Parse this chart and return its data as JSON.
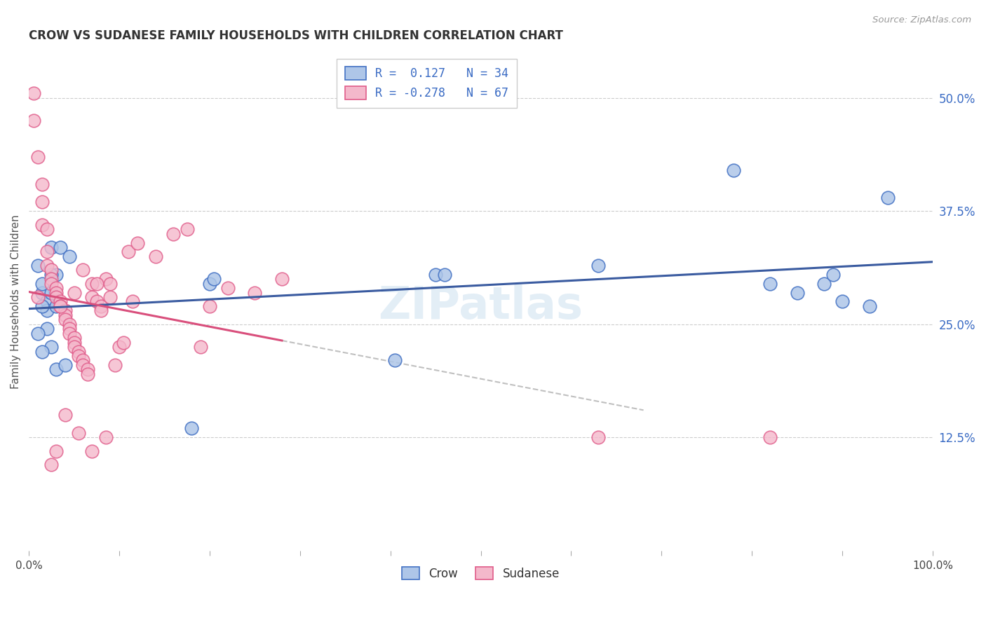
{
  "title": "CROW VS SUDANESE FAMILY HOUSEHOLDS WITH CHILDREN CORRELATION CHART",
  "source": "Source: ZipAtlas.com",
  "ylabel": "Family Households with Children",
  "xlim": [
    0,
    100
  ],
  "ylim": [
    0,
    55
  ],
  "ytick_positions": [
    12.5,
    25.0,
    37.5,
    50.0
  ],
  "ytick_labels": [
    "12.5%",
    "25.0%",
    "37.5%",
    "50.0%"
  ],
  "crow_color": "#aec6e8",
  "crow_edge_color": "#4472c4",
  "sudanese_color": "#f4b8cb",
  "sudanese_edge_color": "#e05c8a",
  "crow_line_color": "#3a5ba0",
  "sudanese_line_color": "#d94f7c",
  "background_color": "#ffffff",
  "grid_color": "#cccccc",
  "legend_text_color": "#3a6bc4",
  "crow_R": "0.127",
  "crow_N": "34",
  "sudanese_R": "-0.278",
  "sudanese_N": "67",
  "crow_points_x": [
    1.5,
    1.0,
    2.5,
    3.5,
    2.0,
    2.0,
    3.0,
    4.5,
    3.0,
    1.5,
    1.5,
    2.0,
    2.5,
    1.0,
    1.5,
    3.0,
    4.0,
    2.5,
    2.5,
    20.0,
    20.5,
    45.0,
    46.0,
    63.0,
    78.0,
    82.0,
    85.0,
    88.0,
    89.0,
    90.0,
    93.0,
    95.0,
    40.5,
    18.0
  ],
  "crow_points_y": [
    28.5,
    31.5,
    33.5,
    33.5,
    27.5,
    26.5,
    27.0,
    32.5,
    30.5,
    29.5,
    27.0,
    24.5,
    22.5,
    24.0,
    22.0,
    20.0,
    20.5,
    28.5,
    30.5,
    29.5,
    30.0,
    30.5,
    30.5,
    31.5,
    42.0,
    29.5,
    28.5,
    29.5,
    30.5,
    27.5,
    27.0,
    39.0,
    21.0,
    13.5
  ],
  "sudanese_points_x": [
    0.5,
    0.5,
    1.0,
    1.5,
    1.5,
    1.5,
    2.0,
    2.0,
    2.0,
    2.5,
    2.5,
    2.5,
    3.0,
    3.0,
    3.0,
    3.5,
    3.5,
    4.0,
    4.0,
    4.0,
    4.5,
    4.5,
    4.5,
    5.0,
    5.0,
    5.0,
    5.5,
    5.5,
    6.0,
    6.0,
    6.5,
    6.5,
    7.0,
    7.0,
    7.5,
    8.0,
    8.0,
    8.5,
    9.0,
    9.5,
    10.0,
    10.5,
    11.0,
    12.0,
    14.0,
    16.0,
    17.5,
    19.0,
    20.0,
    22.0,
    25.0,
    28.0,
    3.0,
    2.5,
    4.0,
    5.5,
    7.0,
    8.5,
    63.0,
    82.0,
    1.0,
    3.5,
    5.0,
    6.0,
    7.5,
    9.0,
    11.5
  ],
  "sudanese_points_y": [
    50.5,
    47.5,
    43.5,
    40.5,
    38.5,
    36.0,
    35.5,
    33.0,
    31.5,
    31.0,
    30.0,
    29.5,
    29.0,
    28.5,
    28.0,
    27.5,
    27.0,
    26.5,
    26.0,
    25.5,
    25.0,
    24.5,
    24.0,
    23.5,
    23.0,
    22.5,
    22.0,
    21.5,
    21.0,
    20.5,
    20.0,
    19.5,
    29.5,
    28.0,
    27.5,
    27.0,
    26.5,
    30.0,
    29.5,
    20.5,
    22.5,
    23.0,
    33.0,
    34.0,
    32.5,
    35.0,
    35.5,
    22.5,
    27.0,
    29.0,
    28.5,
    30.0,
    11.0,
    9.5,
    15.0,
    13.0,
    11.0,
    12.5,
    12.5,
    12.5,
    28.0,
    27.0,
    28.5,
    31.0,
    29.5,
    28.0,
    27.5
  ]
}
